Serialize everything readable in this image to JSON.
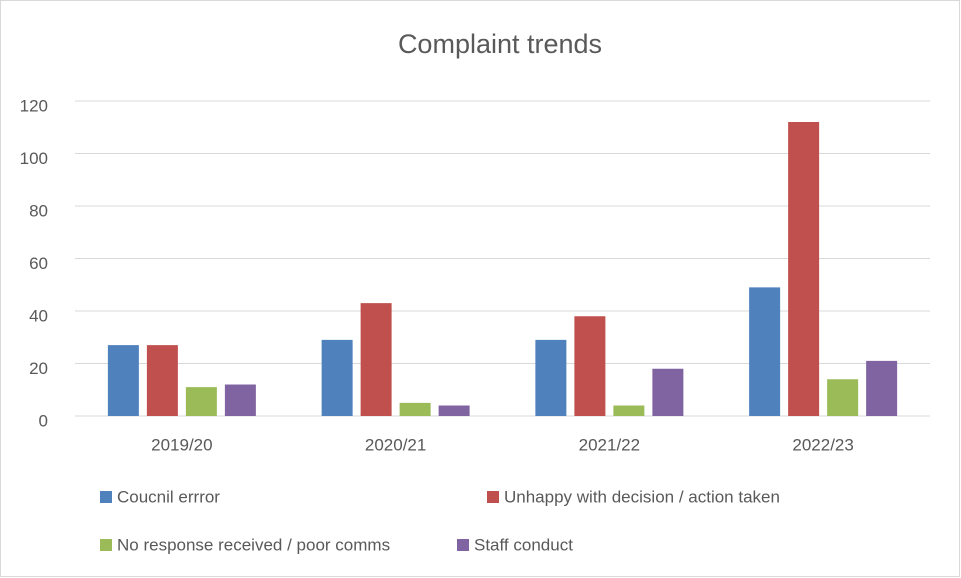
{
  "chart_data": {
    "type": "bar",
    "title": "Complaint trends",
    "categories": [
      "2019/20",
      "2020/21",
      "2021/22",
      "2022/23"
    ],
    "series": [
      {
        "name": "Coucnil errror",
        "color": "#4f81bd",
        "values": [
          27,
          29,
          29,
          49
        ]
      },
      {
        "name": "Unhappy with decision / action taken",
        "color": "#c0504d",
        "values": [
          27,
          43,
          38,
          112
        ]
      },
      {
        "name": "No response received / poor comms",
        "color": "#9bbb59",
        "values": [
          11,
          5,
          4,
          14
        ]
      },
      {
        "name": "Staff conduct",
        "color": "#8064a2",
        "values": [
          12,
          4,
          18,
          21
        ]
      }
    ],
    "ylim": [
      0,
      120
    ],
    "yticks": [
      0,
      20,
      40,
      60,
      80,
      100,
      120
    ],
    "grid": true,
    "legend": "bottom"
  }
}
